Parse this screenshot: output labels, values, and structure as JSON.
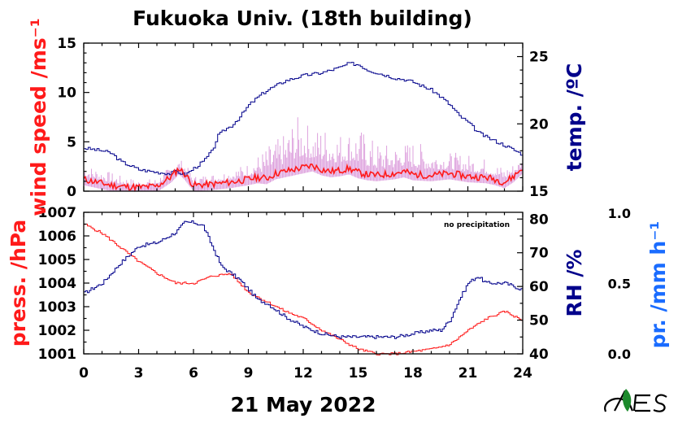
{
  "colors": {
    "wind": "#ff1a1a",
    "wind_gust": "#dda0dd",
    "temp": "#00008b",
    "press": "#ff1a1a",
    "rh": "#00008b",
    "precip": "#1a6cff"
  },
  "chart_data": [
    {
      "type": "line",
      "title": "Fukuoka Univ. (18th building)",
      "xlabel": "21 May 2022",
      "x_ticks": [
        "0",
        "3",
        "6",
        "9",
        "12",
        "15",
        "18",
        "21",
        "24"
      ],
      "xlim": [
        0,
        24
      ],
      "left_axis": {
        "label": "wind speed /ms⁻¹",
        "ylim": [
          0,
          15
        ],
        "ticks": [
          "0",
          "5",
          "10",
          "15"
        ]
      },
      "right_axis": {
        "label": "temp. /ºC",
        "ylim": [
          15,
          26
        ],
        "ticks": [
          "15",
          "20",
          "25"
        ]
      },
      "series": [
        {
          "name": "temperature",
          "axis": "right",
          "x": [
            0,
            1,
            1.5,
            2,
            3,
            4,
            4.7,
            5,
            5.5,
            6,
            6.5,
            7,
            7.3,
            7.7,
            8,
            8.5,
            9,
            9.5,
            10,
            11,
            11.5,
            12,
            12.5,
            13,
            13.5,
            14,
            14.5,
            15,
            15.5,
            16,
            17,
            17.5,
            18,
            19,
            19.5,
            20,
            20.5,
            21,
            21.5,
            22,
            23,
            24
          ],
          "y": [
            18.2,
            18.0,
            17.8,
            17.2,
            16.6,
            16.4,
            16.3,
            16.5,
            16.2,
            16.7,
            17.2,
            18.0,
            19.1,
            19.6,
            19.8,
            20.5,
            21.4,
            22.0,
            22.5,
            23.2,
            23.4,
            23.6,
            23.7,
            23.8,
            24.0,
            24.2,
            24.5,
            24.4,
            24.0,
            23.8,
            23.4,
            23.3,
            23.1,
            22.5,
            22.0,
            21.4,
            20.6,
            20.1,
            19.4,
            19.0,
            18.4,
            17.7
          ]
        },
        {
          "name": "wind speed (1-min)",
          "axis": "left",
          "x": [
            0,
            0.5,
            1,
            1.5,
            2,
            3,
            4,
            4.8,
            5.2,
            5.5,
            6,
            7,
            8,
            9,
            9.5,
            10,
            10.5,
            11,
            11.5,
            12,
            12.5,
            13,
            13.5,
            14,
            14.5,
            15,
            15.5,
            16,
            17,
            17.5,
            18,
            19,
            20,
            21,
            22,
            22.5,
            23,
            23.5,
            24
          ],
          "y": [
            1.2,
            1.0,
            0.8,
            0.6,
            0.5,
            0.4,
            0.5,
            1.5,
            2.3,
            1.8,
            0.6,
            0.7,
            0.9,
            1.2,
            1.4,
            1.3,
            1.8,
            2.0,
            2.2,
            2.4,
            2.6,
            2.2,
            2.0,
            2.1,
            2.3,
            1.9,
            1.7,
            1.6,
            1.8,
            2.0,
            1.7,
            1.6,
            1.8,
            1.5,
            1.4,
            1.2,
            0.9,
            1.5,
            2.4
          ]
        },
        {
          "name": "wind gust",
          "axis": "left",
          "x": [
            0,
            1,
            2,
            3,
            4,
            5,
            5.4,
            6,
            7,
            8,
            9,
            10,
            11,
            11.5,
            12,
            12.5,
            13,
            14,
            15,
            16,
            17,
            18,
            19,
            20,
            21,
            22,
            23,
            24
          ],
          "y": [
            2.5,
            2.0,
            1.4,
            1.0,
            1.2,
            2.8,
            3.0,
            1.4,
            1.6,
            2.0,
            2.6,
            4.0,
            5.2,
            6.6,
            6.8,
            5.5,
            6.0,
            5.4,
            5.8,
            4.4,
            4.2,
            4.6,
            4.0,
            3.6,
            3.4,
            3.0,
            2.2,
            3.0
          ]
        }
      ]
    },
    {
      "type": "line",
      "annotation": "no precipitation",
      "x_ticks": [
        "0",
        "3",
        "6",
        "9",
        "12",
        "15",
        "18",
        "21",
        "24"
      ],
      "xlim": [
        0,
        24
      ],
      "left_axis": {
        "label": "press. /hPa",
        "ylim": [
          1001,
          1007
        ],
        "ticks": [
          "1001",
          "1002",
          "1003",
          "1004",
          "1005",
          "1006",
          "1007"
        ]
      },
      "right_axis": {
        "label": "RH /%",
        "ylim": [
          40,
          82
        ],
        "ticks": [
          "40",
          "50",
          "60",
          "70",
          "80"
        ]
      },
      "precip_axis": {
        "label": "pr. /mm h⁻¹",
        "ylim": [
          0,
          1
        ],
        "ticks": [
          "0.0",
          "0.5",
          "1.0"
        ]
      },
      "series": [
        {
          "name": "pressure",
          "axis": "left",
          "x": [
            0,
            1,
            2,
            3,
            4,
            5,
            6,
            7,
            8,
            9,
            10,
            11,
            12,
            13,
            14,
            15,
            16,
            17,
            18,
            19,
            20,
            21,
            22,
            23,
            24
          ],
          "y": [
            1006.5,
            1006.1,
            1005.5,
            1004.9,
            1004.4,
            1004.0,
            1004.0,
            1004.3,
            1004.4,
            1003.6,
            1003.2,
            1002.8,
            1002.5,
            1002.0,
            1001.6,
            1001.2,
            1001.0,
            1001.0,
            1001.1,
            1001.2,
            1001.4,
            1002.0,
            1002.5,
            1002.8,
            1002.4
          ]
        },
        {
          "name": "relative humidity",
          "axis": "right",
          "x": [
            0,
            1,
            2,
            3,
            4,
            5,
            5.5,
            6,
            6.5,
            7,
            7.5,
            8,
            8.5,
            9,
            9.5,
            10,
            10.5,
            11,
            12,
            13,
            14,
            15,
            16,
            17,
            18,
            19,
            19.5,
            20,
            20.5,
            21,
            21.5,
            22,
            23,
            23.5,
            24
          ],
          "y": [
            58,
            61,
            67,
            72,
            73,
            76,
            79,
            79,
            78,
            72,
            66,
            64,
            62,
            59,
            56,
            55,
            53,
            51,
            48,
            46,
            45,
            45,
            45,
            45,
            46,
            47,
            47,
            50,
            56,
            61,
            63,
            61,
            61,
            60,
            59
          ]
        }
      ]
    }
  ]
}
